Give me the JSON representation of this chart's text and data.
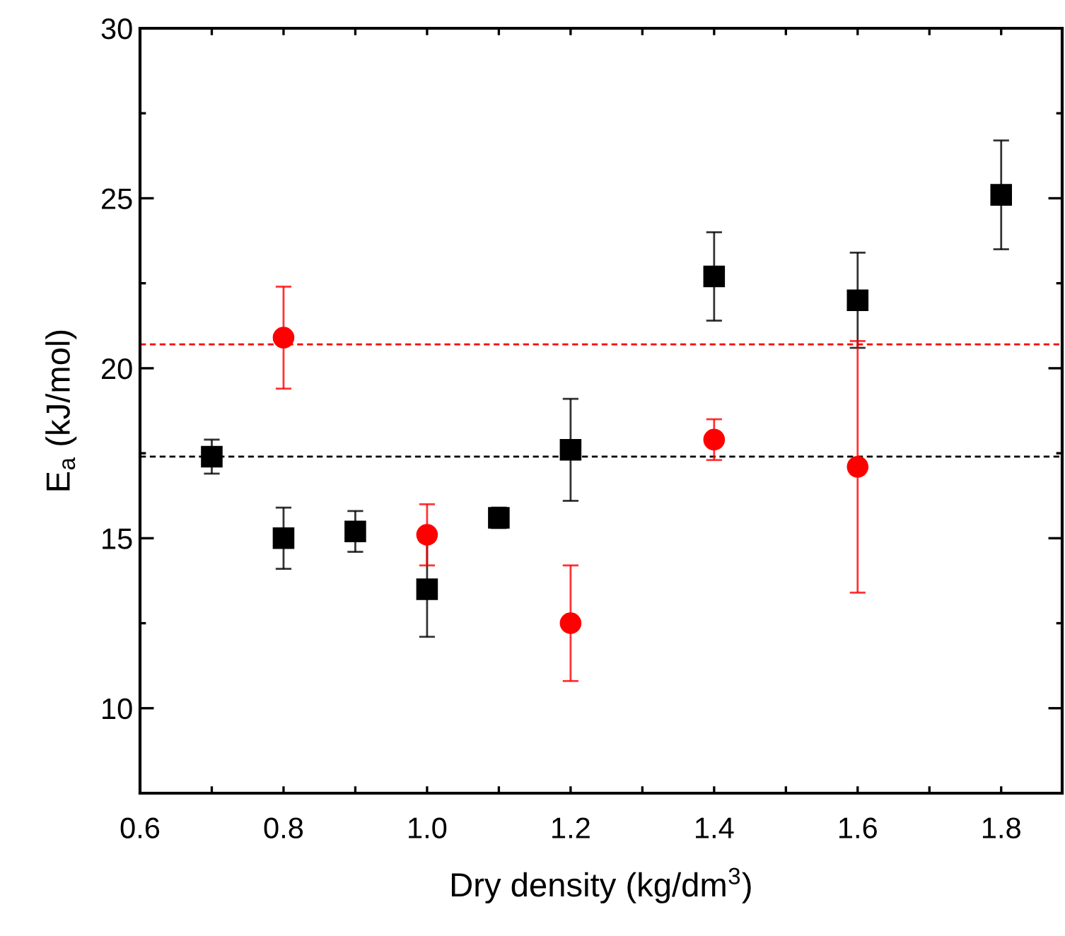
{
  "chart_data": {
    "type": "scatter",
    "xlabel": "Dry density (kg/dm$^{3}$)",
    "ylabel": "E$_{a}$ (kJ/mol)",
    "xlim": [
      0.6,
      1.885
    ],
    "ylim": [
      7.5,
      30
    ],
    "xticks": [
      0.6,
      {
        "value": 0.7,
        "label": null
      },
      0.8,
      {
        "value": 0.9,
        "label": null
      },
      {
        "value": 1.0,
        "label": "1.0"
      },
      {
        "value": 1.1,
        "label": null
      },
      1.2,
      {
        "value": 1.3,
        "label": null
      },
      1.4,
      {
        "value": 1.5,
        "label": null
      },
      1.6,
      {
        "value": 1.7,
        "label": null
      },
      1.8
    ],
    "yticks": [
      {
        "value": 7.5,
        "label": null
      },
      10,
      {
        "value": 12.5,
        "label": null
      },
      15,
      {
        "value": 17.5,
        "label": null
      },
      20,
      {
        "value": 22.5,
        "label": null
      },
      25,
      {
        "value": 27.5,
        "label": null
      },
      30
    ],
    "grid": false,
    "legend": false,
    "series": [
      {
        "color": "#000000",
        "marker": "square",
        "x": [
          0.7,
          0.8,
          0.9,
          1.0,
          1.1,
          1.2,
          1.4,
          1.6,
          1.8
        ],
        "values": [
          17.4,
          15.0,
          15.2,
          13.5,
          15.6,
          17.6,
          22.7,
          22.0,
          25.1
        ],
        "errors": [
          [
            16.9,
            17.9
          ],
          [
            14.1,
            15.9
          ],
          [
            14.6,
            15.8
          ],
          [
            12.1,
            14.9
          ],
          [
            15.3,
            15.9
          ],
          [
            16.1,
            19.1
          ],
          [
            21.4,
            24.0
          ],
          [
            20.6,
            23.4
          ],
          [
            23.5,
            26.7
          ]
        ]
      },
      {
        "color": "#ff0000",
        "marker": "circle",
        "x": [
          0.8,
          1.0,
          1.2,
          1.4,
          1.6
        ],
        "values": [
          20.9,
          15.1,
          12.5,
          17.9,
          17.1
        ],
        "errors": [
          [
            19.4,
            22.4
          ],
          [
            14.2,
            16.0
          ],
          [
            10.8,
            14.2
          ],
          [
            17.3,
            18.5
          ],
          [
            13.4,
            20.8
          ]
        ]
      }
    ],
    "ref_lines": [
      {
        "axis": "y",
        "value": 20.7,
        "color": "#ff0000",
        "line_style": "dashed"
      },
      {
        "axis": "y",
        "value": 17.4,
        "color": "#000000",
        "line_style": "dashed"
      }
    ]
  }
}
